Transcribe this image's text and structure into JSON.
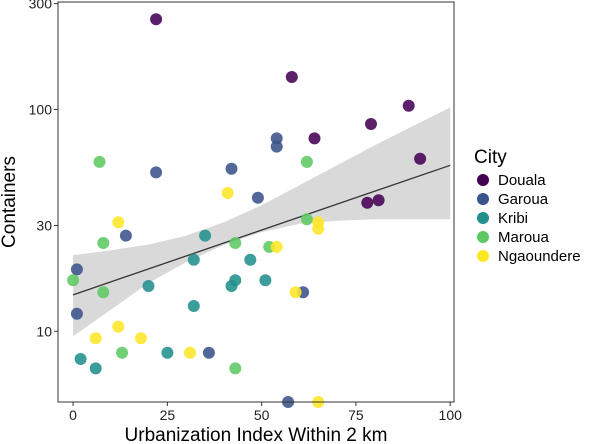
{
  "chart_data": {
    "type": "scatter",
    "title": "",
    "xlabel": "Urbanization Index Within 2 km",
    "ylabel": "Containers",
    "xlim": [
      -4,
      101
    ],
    "ylim": [
      4.8,
      305
    ],
    "y_scale": "log",
    "x_ticks": [
      0,
      25,
      50,
      75,
      100
    ],
    "x_tick_labels": [
      "0",
      "25",
      "50",
      "75",
      "100"
    ],
    "y_ticks": [
      10,
      30,
      100,
      300
    ],
    "y_tick_labels": [
      "10",
      "30",
      "100",
      "300"
    ],
    "grid": false,
    "legend_title": "City",
    "legend_position": "right",
    "series": [
      {
        "name": "Douala",
        "color": "#440154",
        "points": [
          [
            22,
            255
          ],
          [
            58,
            140
          ],
          [
            64,
            74
          ],
          [
            79,
            86
          ],
          [
            89,
            104
          ],
          [
            78,
            38
          ],
          [
            81,
            39
          ],
          [
            92,
            60
          ]
        ]
      },
      {
        "name": "Garoua",
        "color": "#3b528b",
        "points": [
          [
            1,
            19
          ],
          [
            1,
            12
          ],
          [
            14,
            27
          ],
          [
            22,
            52
          ],
          [
            42,
            54
          ],
          [
            36,
            8
          ],
          [
            49,
            40
          ],
          [
            54,
            74
          ],
          [
            54,
            68
          ],
          [
            61,
            15
          ],
          [
            57,
            4.8
          ]
        ]
      },
      {
        "name": "Kribi",
        "color": "#21908d",
        "points": [
          [
            2,
            7.5
          ],
          [
            6,
            6.8
          ],
          [
            25,
            8
          ],
          [
            20,
            16
          ],
          [
            32,
            21
          ],
          [
            32,
            13
          ],
          [
            35,
            27
          ],
          [
            42,
            16
          ],
          [
            43,
            17
          ],
          [
            47,
            21
          ],
          [
            51,
            17
          ]
        ]
      },
      {
        "name": "Maroua",
        "color": "#5dc863",
        "points": [
          [
            0,
            17
          ],
          [
            7,
            58
          ],
          [
            8,
            25
          ],
          [
            8,
            15
          ],
          [
            13,
            8
          ],
          [
            43,
            25
          ],
          [
            43,
            6.8
          ],
          [
            52,
            24
          ],
          [
            62,
            58
          ],
          [
            62,
            32
          ]
        ]
      },
      {
        "name": "Ngaoundere",
        "color": "#fde725",
        "points": [
          [
            6,
            9.3
          ],
          [
            12,
            10.5
          ],
          [
            12,
            31
          ],
          [
            18,
            9.3
          ],
          [
            31,
            8
          ],
          [
            41,
            42
          ],
          [
            54,
            24
          ],
          [
            59,
            15
          ],
          [
            65,
            31
          ],
          [
            65,
            29
          ],
          [
            65,
            4.8
          ]
        ]
      }
    ],
    "trend_line": {
      "x": [
        0,
        100
      ],
      "y": [
        14.6,
        56
      ],
      "color": "#333333"
    },
    "confidence_band": {
      "x": [
        0,
        10,
        20,
        30,
        40,
        50,
        60,
        70,
        80,
        90,
        100
      ],
      "lower": [
        9.5,
        12.5,
        16.5,
        20.5,
        24.5,
        28,
        30.5,
        31.5,
        32,
        32,
        32
      ],
      "upper": [
        22,
        23.2,
        24.6,
        27,
        31,
        37,
        45.5,
        56,
        69,
        84,
        102
      ],
      "color": "#d9d9d9"
    }
  }
}
